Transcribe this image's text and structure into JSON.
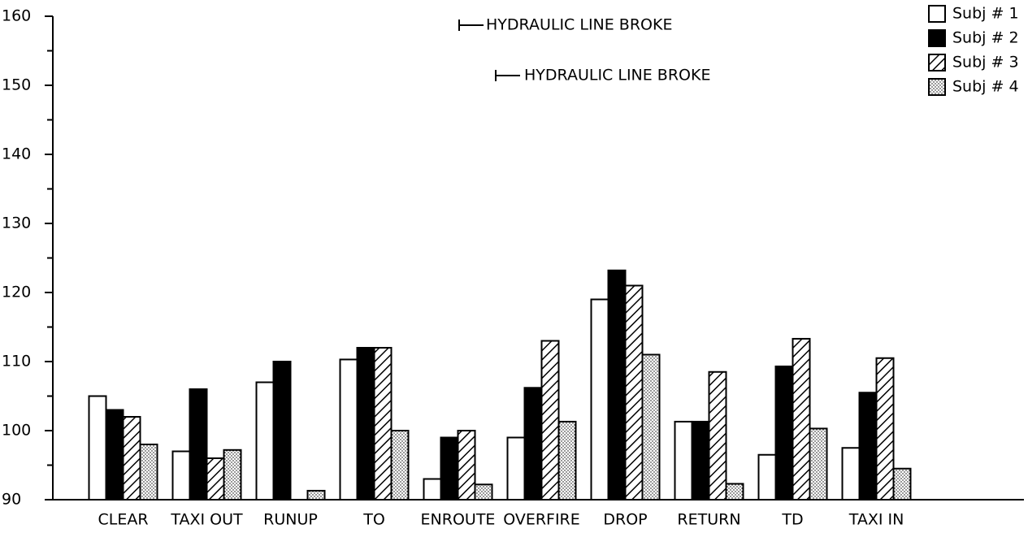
{
  "chart_data": {
    "type": "bar",
    "categories": [
      "CLEAR",
      "TAXI OUT",
      "RUNUP",
      "TO",
      "ENROUTE",
      "OVERFIRE",
      "DROP",
      "RETURN",
      "TD",
      "TAXI IN"
    ],
    "series": [
      {
        "name": "Subj # 1",
        "color": "#ffffff",
        "pattern": "solid",
        "values": [
          105,
          97,
          107,
          110.3,
          93,
          99,
          119,
          101.3,
          96.5,
          97.5
        ]
      },
      {
        "name": "Subj # 2",
        "color": "#000000",
        "pattern": "solid",
        "values": [
          103,
          106,
          110,
          112,
          99,
          106.2,
          123.2,
          101.3,
          109.3,
          105.5
        ]
      },
      {
        "name": "Subj # 3",
        "color": "#000000",
        "pattern": "hatch",
        "values": [
          102,
          96,
          null,
          112,
          100,
          113,
          121,
          108.5,
          113.3,
          110.5
        ]
      },
      {
        "name": "Subj # 4",
        "color": "#000000",
        "pattern": "dots",
        "values": [
          98,
          97.2,
          91.3,
          100,
          92.2,
          101.3,
          111,
          92.3,
          100.3,
          94.5
        ]
      }
    ],
    "ylim": [
      90,
      160
    ],
    "yticks": [
      90,
      100,
      110,
      120,
      130,
      140,
      150,
      160
    ],
    "minor_yticks": [
      95,
      105,
      115,
      125,
      135,
      145,
      155
    ],
    "annotations": [
      "HYDRAULIC LINE BROKE",
      "HYDRAULIC LINE BROKE"
    ],
    "grid": false,
    "legend": "upper right"
  }
}
